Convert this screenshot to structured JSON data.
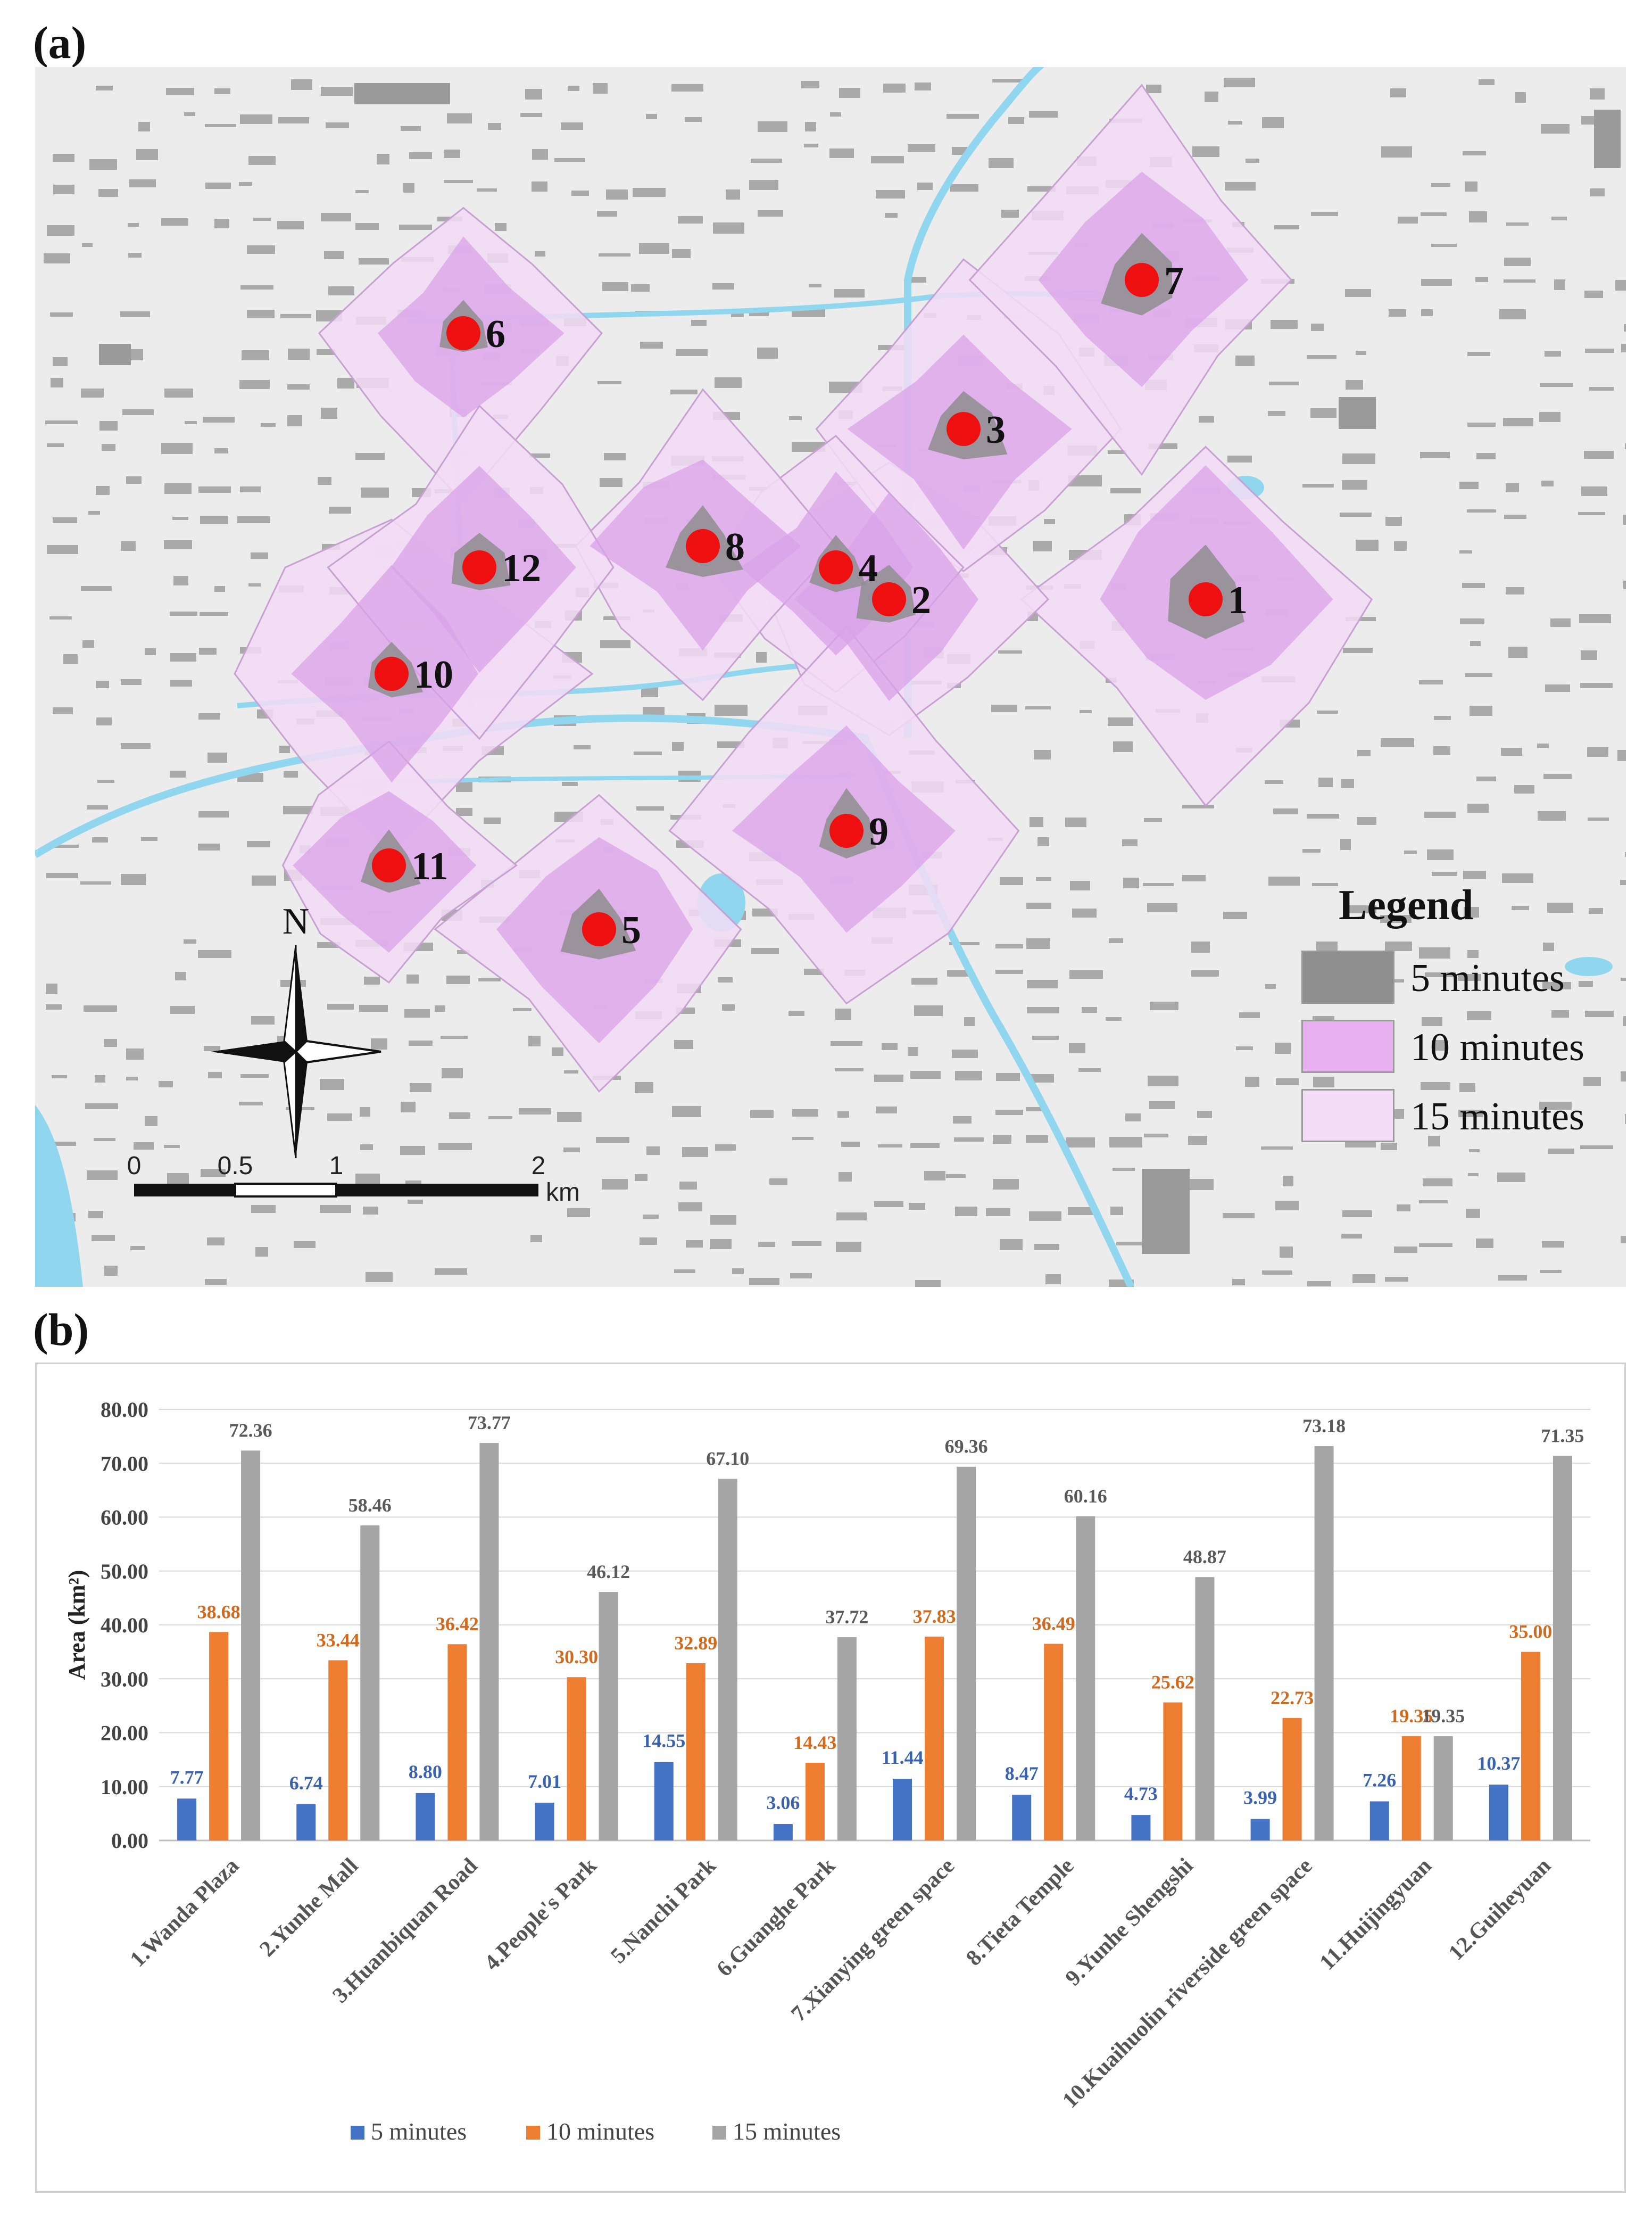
{
  "panels": {
    "a_label": "(a)",
    "b_label": "(b)"
  },
  "map": {
    "legend_title": "Legend",
    "legend_items": [
      {
        "label": "5 minutes",
        "color": "#8e8e8e"
      },
      {
        "label": "10 minutes",
        "color": "#e8b0f0"
      },
      {
        "label": "15 minutes",
        "color": "#f3dcf6"
      }
    ],
    "north_label": "N",
    "scale_labels": [
      "0",
      "0.5",
      "1",
      "2"
    ],
    "scale_unit": "km",
    "poi_labels": [
      "1",
      "2",
      "3",
      "4",
      "5",
      "6",
      "7",
      "8",
      "9",
      "10",
      "11",
      "12"
    ],
    "colors": {
      "background": "#ececec",
      "building": "#a9a9a9",
      "water": "#8fd6ee",
      "poi": "#ee1010",
      "zone15": "#f3dcf6",
      "zone10": "#d9a2e8",
      "zone5": "#8e8e8e"
    }
  },
  "chart_data": {
    "type": "bar",
    "ylabel": "Area (km²)",
    "ylim": [
      0,
      80
    ],
    "yticks": [
      "0.00",
      "10.00",
      "20.00",
      "30.00",
      "40.00",
      "50.00",
      "60.00",
      "70.00",
      "80.00"
    ],
    "grid": true,
    "legend_position": "bottom",
    "categories": [
      "1.Wanda Plaza",
      "2.Yunhe Mall",
      "3.Huanbiquan Road",
      "4.People's Park",
      "5.Nanchi Park",
      "6.Guanghe Park",
      "7.Xianying green space",
      "8.Tieta Temple",
      "9.Yunhe Shengshi",
      "10.Kuaihuolin riverside green space",
      "11.Huijingyuan",
      "12.Guiheyuan"
    ],
    "series": [
      {
        "name": "5 minutes",
        "color": "#4472c4",
        "values": [
          7.77,
          6.74,
          8.8,
          7.01,
          14.55,
          3.06,
          11.44,
          8.47,
          4.73,
          3.99,
          7.26,
          10.37
        ],
        "labels": [
          "7.77",
          "6.74",
          "8.80",
          "7.01",
          "14.55",
          "3.06",
          "11.44",
          "8.47",
          "4.73",
          "3.99",
          "7.26",
          "10.37"
        ]
      },
      {
        "name": "10 minutes",
        "color": "#ed7d31",
        "values": [
          38.68,
          33.44,
          36.42,
          30.3,
          32.89,
          14.43,
          37.83,
          36.49,
          25.62,
          22.73,
          19.35,
          35.0
        ],
        "labels": [
          "38.68",
          "33.44",
          "36.42",
          "30.30",
          "32.89",
          "14.43",
          "37.83",
          "36.49",
          "25.62",
          "22.73",
          "19.35",
          "35.00"
        ]
      },
      {
        "name": "15 minutes",
        "color": "#a5a5a5",
        "values": [
          72.36,
          58.46,
          73.77,
          46.12,
          67.1,
          37.72,
          69.36,
          60.16,
          48.87,
          73.18,
          19.35,
          71.35
        ],
        "labels": [
          "72.36",
          "58.46",
          "73.77",
          "46.12",
          "67.10",
          "37.72",
          "69.36",
          "60.16",
          "48.87",
          "73.18",
          "19.35",
          "71.35"
        ]
      }
    ]
  }
}
